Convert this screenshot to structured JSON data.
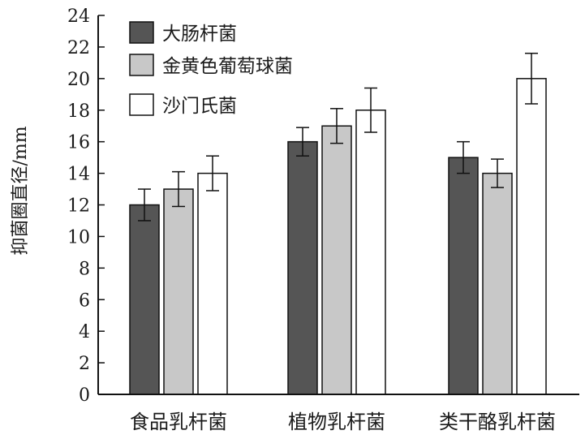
{
  "chart_data": {
    "type": "bar",
    "title": "",
    "xlabel": "",
    "ylabel": "抑菌圈直径/mm",
    "ylim": [
      0,
      24
    ],
    "ytick_step": 2,
    "yticks": [
      "0",
      "2",
      "4",
      "6",
      "8",
      "10",
      "12",
      "14",
      "16",
      "18",
      "20",
      "22",
      "24"
    ],
    "grid": false,
    "legend_position": "top-left",
    "categories": [
      "食品乳杆菌",
      "植物乳杆菌",
      "类干酪乳杆菌"
    ],
    "series": [
      {
        "name": "大肠杆菌",
        "color": "#555555",
        "values": [
          12,
          16,
          15
        ],
        "errors": [
          1.0,
          0.9,
          1.0
        ]
      },
      {
        "name": "金黄色葡萄球菌",
        "color": "#c8c8c8",
        "values": [
          13,
          17,
          14
        ],
        "errors": [
          1.1,
          1.1,
          0.9
        ]
      },
      {
        "name": "沙门氏菌",
        "color": "#ffffff",
        "values": [
          14,
          18,
          20
        ],
        "errors": [
          1.1,
          1.4,
          1.6
        ]
      }
    ]
  }
}
